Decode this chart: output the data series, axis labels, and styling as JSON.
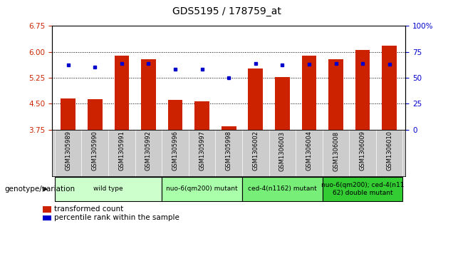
{
  "title": "GDS5195 / 178759_at",
  "samples": [
    "GSM1305989",
    "GSM1305990",
    "GSM1305991",
    "GSM1305992",
    "GSM1305996",
    "GSM1305997",
    "GSM1305998",
    "GSM1306002",
    "GSM1306003",
    "GSM1306004",
    "GSM1306008",
    "GSM1306009",
    "GSM1306010"
  ],
  "bar_values": [
    4.65,
    4.62,
    5.88,
    5.78,
    4.6,
    4.57,
    3.85,
    5.52,
    5.26,
    5.88,
    5.78,
    6.05,
    6.17
  ],
  "dot_pct": [
    62,
    60,
    64,
    64,
    58,
    58,
    50,
    64,
    62,
    63,
    64,
    64,
    63
  ],
  "ylim_left": [
    3.75,
    6.75
  ],
  "ylim_right": [
    0,
    100
  ],
  "yticks_left": [
    3.75,
    4.5,
    5.25,
    6.0,
    6.75
  ],
  "yticks_right": [
    0,
    25,
    50,
    75,
    100
  ],
  "bar_color": "#cc2200",
  "dot_color": "#0000cc",
  "bar_bottom": 3.75,
  "groups": [
    {
      "label": "wild type",
      "start": 0,
      "end": 3,
      "color": "#ccffcc"
    },
    {
      "label": "nuo-6(qm200) mutant",
      "start": 4,
      "end": 6,
      "color": "#aaffaa"
    },
    {
      "label": "ced-4(n1162) mutant",
      "start": 7,
      "end": 9,
      "color": "#77ee77"
    },
    {
      "label": "nuo-6(qm200); ced-4(n11\n62) double mutant",
      "start": 10,
      "end": 12,
      "color": "#33cc33"
    }
  ],
  "ylabel_left_color": "#cc2200",
  "ylabel_right_color": "#0000cc",
  "tick_label_area_bg": "#cccccc",
  "legend_items": [
    "transformed count",
    "percentile rank within the sample"
  ],
  "genotype_label": "genotype/variation"
}
